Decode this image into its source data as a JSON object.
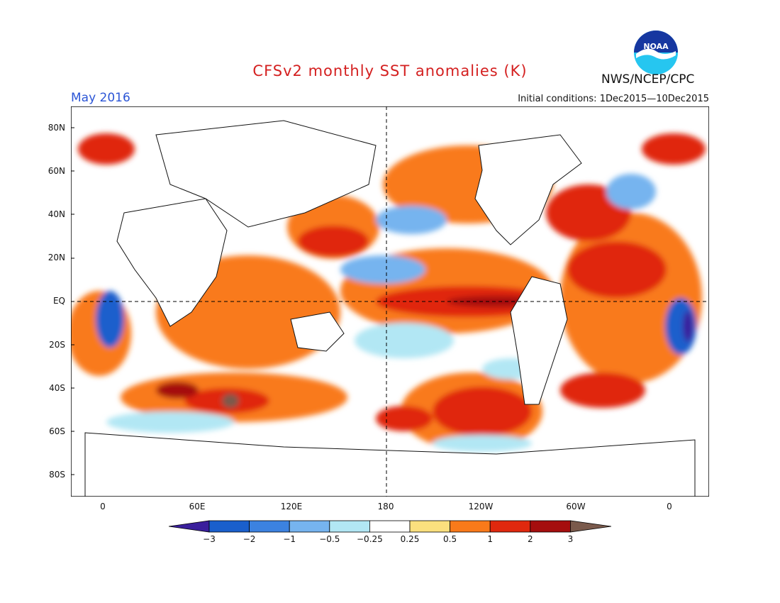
{
  "title": "CFSv2 monthly SST anomalies (K)",
  "period": "May 2016",
  "initial_conditions": "Initial conditions: 1Dec2015—10Dec2015",
  "organization": "NWS/NCEP/CPC",
  "logo_text": "NOAA",
  "lat_labels": [
    "80N",
    "60N",
    "40N",
    "20N",
    "EQ",
    "20S",
    "40S",
    "60S",
    "80S"
  ],
  "lon_labels": [
    "0",
    "60E",
    "120E",
    "180",
    "120W",
    "60W",
    "0"
  ],
  "colorbar": {
    "labels": [
      "−3",
      "−2",
      "−1",
      "−0.5",
      "−0.25",
      "0.25",
      "0.5",
      "1",
      "2",
      "3"
    ],
    "colors": [
      "#3a1f9c",
      "#1a5fcc",
      "#3c82e0",
      "#76b4ef",
      "#b2e7f4",
      "#ffffff",
      "#fbe07e",
      "#f97a1a",
      "#e0280e",
      "#a50e0e",
      "#7a5a4c"
    ]
  },
  "colors": {
    "title": "#d42020",
    "period": "#2b55d6",
    "ocean_base": "#ffffff"
  }
}
